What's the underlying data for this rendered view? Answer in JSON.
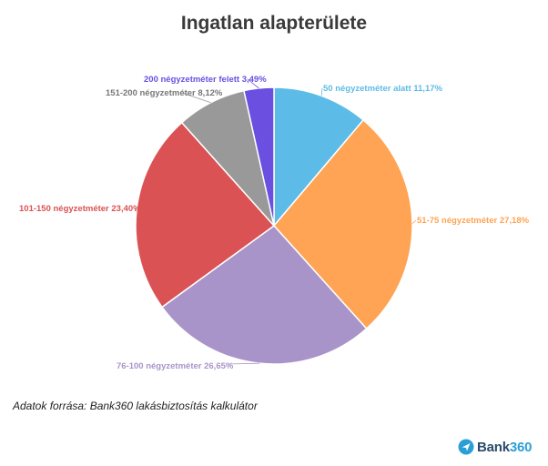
{
  "source": "Adatok forrása: Bank360 lakásbiztosítás kalkulátor",
  "brand": {
    "name": "Bank",
    "accent": "360",
    "icon": "bank360-logo-icon"
  },
  "chart_data": {
    "type": "pie",
    "title": "Ingatlan alapterülete",
    "start_angle_deg": 0,
    "direction": "clockwise",
    "slices": [
      {
        "label": "50 négyzetméter alatt",
        "pct_text": "11,17%",
        "value": 11.17,
        "color": "#5dbbe7"
      },
      {
        "label": "51-75 négyzetméter",
        "pct_text": "27,18%",
        "value": 27.18,
        "color": "#fea454"
      },
      {
        "label": "76-100 négyzetméter",
        "pct_text": "26,65%",
        "value": 26.65,
        "color": "#a994c9"
      },
      {
        "label": "101-150 négyzetméter",
        "pct_text": "23,40%",
        "value": 23.4,
        "color": "#db5254"
      },
      {
        "label": "151-200 négyzetméter",
        "pct_text": "8,12%",
        "value": 8.12,
        "color": "#999999"
      },
      {
        "label": "200 négyzetméter felett",
        "pct_text": "3,49%",
        "value": 3.49,
        "color": "#6a4fe0"
      }
    ]
  }
}
